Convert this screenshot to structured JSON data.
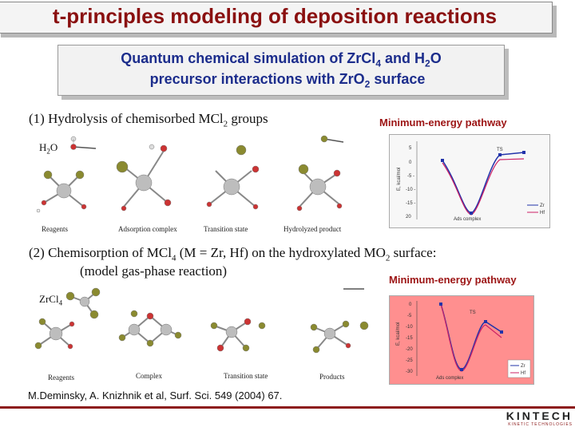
{
  "title": "t-principles modeling of deposition reactions",
  "subtitle": {
    "line1_prefix": "Quantum chemical simulation of ZrCl",
    "line1_sub": "4",
    "line1_suffix": " and H",
    "line1_sub2": "2",
    "line1_end": "O",
    "line2_prefix": "precursor interactions with ZrO",
    "line2_sub": "2",
    "line2_suffix": " surface"
  },
  "section1": {
    "heading_prefix": "(1) Hydrolysis of chemisorbed MCl",
    "heading_sub": "2",
    "heading_suffix": " groups",
    "reactant": "H",
    "reactant_sub": "2",
    "reactant_end": "O",
    "stage_labels": [
      "Reagents",
      "Adsorption complex",
      "Transition state",
      "Hydrolyzed  product"
    ],
    "pathway_title": "Minimum-energy pathway",
    "plot": {
      "y_ticks": [
        "5",
        "0",
        "-5 -",
        "-10 -",
        "-15 -",
        "20"
      ],
      "y_axis_label": "E, kcal/mol",
      "point_label": "Ads complex",
      "ts_label": "TS",
      "legend": [
        "Zr",
        "Hf"
      ],
      "colors": {
        "zr": "#2233aa",
        "hf": "#cc2266"
      }
    }
  },
  "section2": {
    "heading_prefix": "(2) Chemisorption of MCl",
    "heading_sub": "4",
    "heading_suffix": " (M = Zr, Hf) on the hydroxylated MO",
    "heading_sub2": "2",
    "heading_end": " surface:",
    "heading_line2": "(model gas-phase reaction)",
    "reactant": "ZrCl",
    "reactant_sub": "4",
    "stage_labels": [
      "Reagents",
      "Complex",
      "Transition state",
      "Products"
    ],
    "pathway_title": "Minimum-energy pathway",
    "plot": {
      "y_ticks": [
        "0",
        "-5",
        "-10",
        "-15",
        "-20",
        "-25",
        "-30"
      ],
      "y_axis_label": "E, kcal/mol",
      "point_label": "Ads complex",
      "ts_label": "TS",
      "legend": [
        "Zr",
        "Hf"
      ],
      "colors": {
        "zr": "#2233aa",
        "hf": "#cc2266",
        "bg": "#ff8f8f"
      }
    }
  },
  "citation": "M.Deminsky, A. Knizhnik et al, Surf. Sci. 549 (2004) 67.",
  "logo": {
    "name": "KINTECH",
    "tagline": "KINETIC TECHNOLOGIES"
  }
}
